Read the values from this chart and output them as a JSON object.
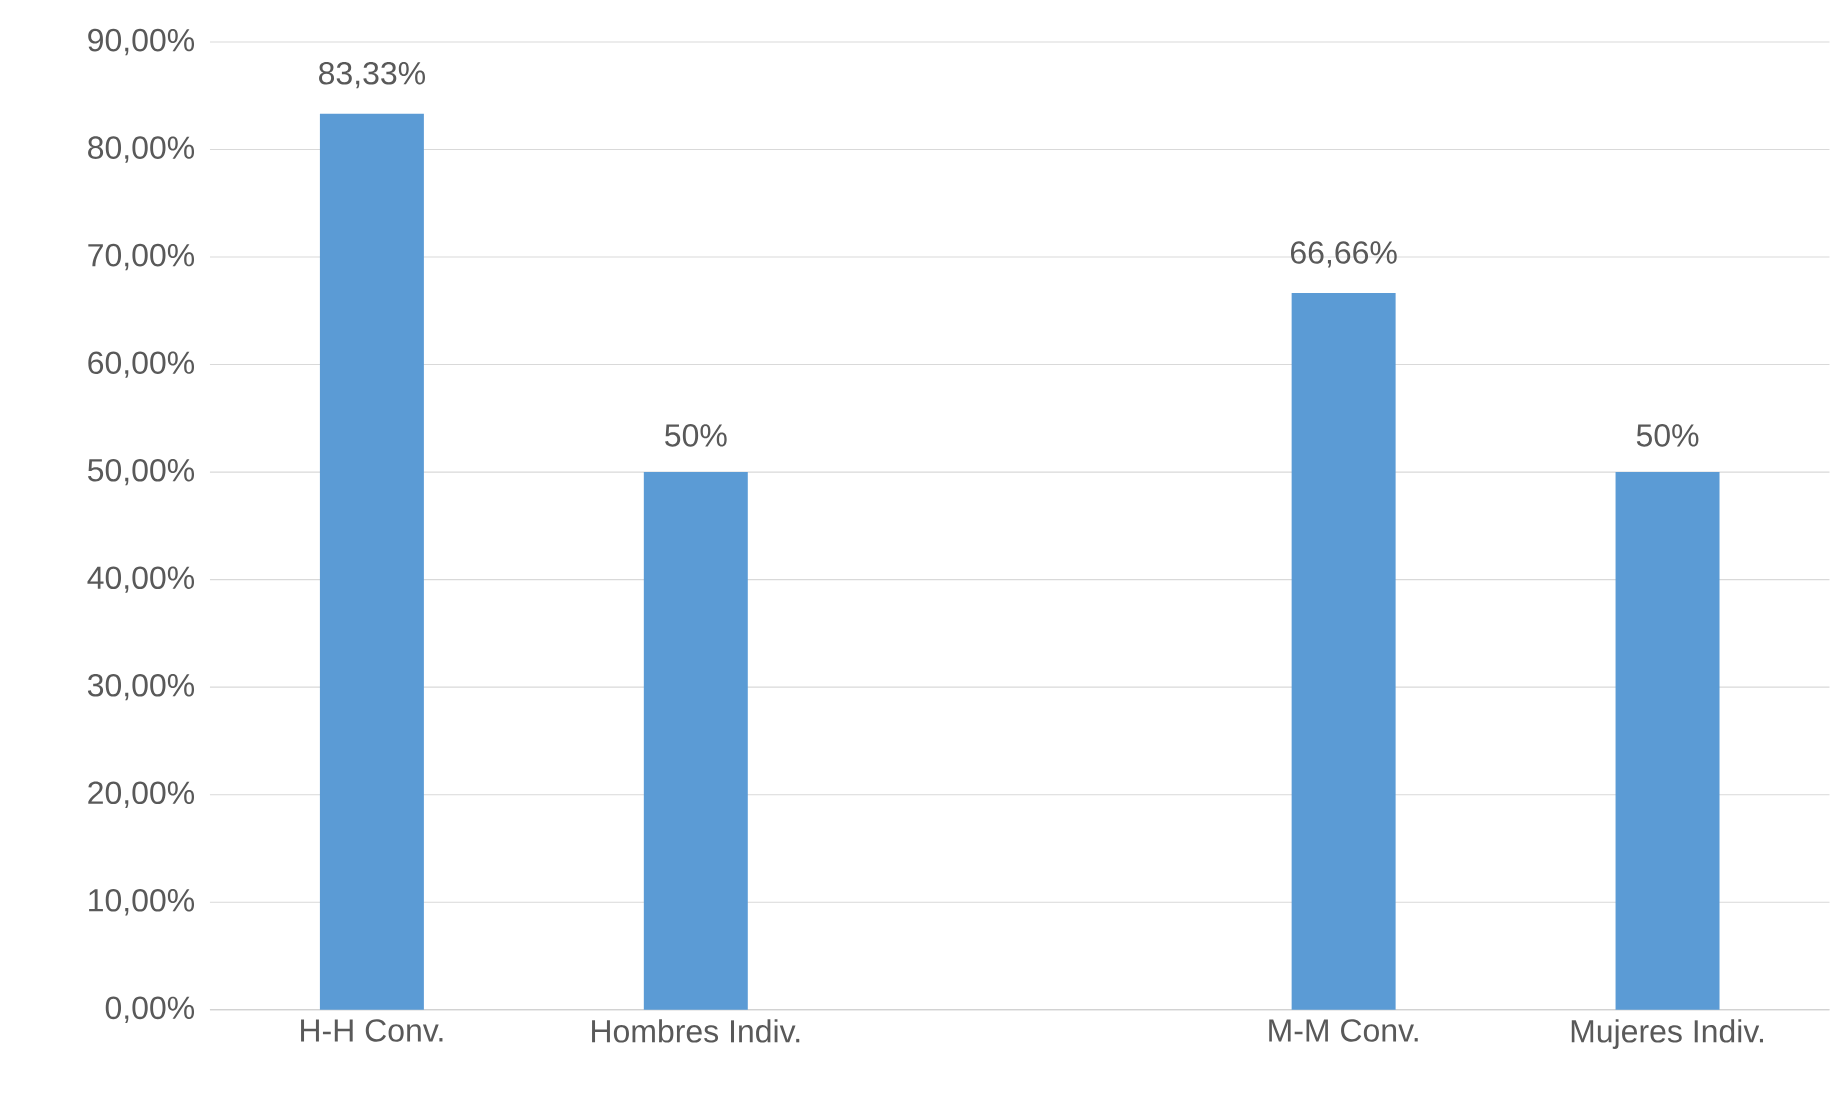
{
  "chart_data": {
    "type": "bar",
    "categories": [
      "H-H Conv.",
      "Hombres Indiv.",
      null,
      "M-M Conv.",
      "Mujeres Indiv."
    ],
    "values": [
      83.33,
      50,
      null,
      66.66,
      50
    ],
    "value_labels": [
      "83,33%",
      "50%",
      null,
      "66,66%",
      "50%"
    ],
    "color": "#5b9bd5",
    "ylim": [
      0,
      90
    ],
    "yticks": [
      {
        "value": 0,
        "label": "0,00%"
      },
      {
        "value": 10,
        "label": "10,00%"
      },
      {
        "value": 20,
        "label": "20,00%"
      },
      {
        "value": 30,
        "label": "30,00%"
      },
      {
        "value": 40,
        "label": "40,00%"
      },
      {
        "value": 50,
        "label": "50,00%"
      },
      {
        "value": 60,
        "label": "60,00%"
      },
      {
        "value": 70,
        "label": "70,00%"
      },
      {
        "value": 80,
        "label": "80,00%"
      },
      {
        "value": 90,
        "label": "90,00%"
      }
    ],
    "grid": "y"
  }
}
